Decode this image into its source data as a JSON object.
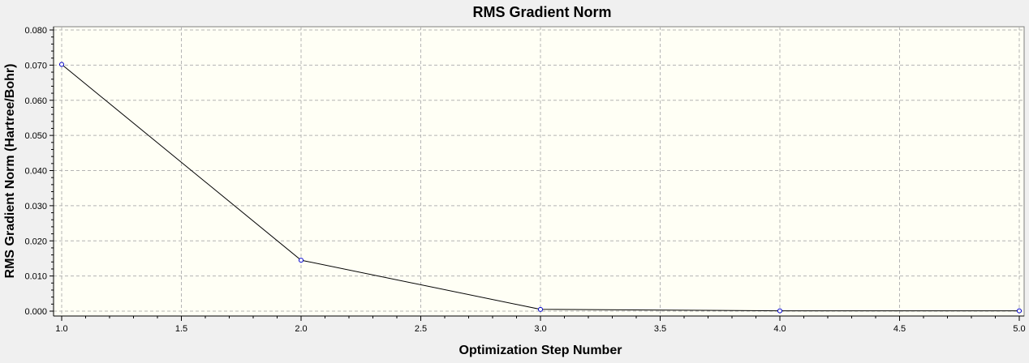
{
  "chart_data": {
    "type": "line",
    "title": "RMS Gradient Norm",
    "xlabel": "Optimization Step Number",
    "ylabel": "RMS Gradient Norm (Hartree/Bohr)",
    "xlim": [
      1.0,
      5.0
    ],
    "ylim": [
      0.0,
      0.08
    ],
    "x_ticks": [
      "1.0",
      "1.5",
      "2.0",
      "2.5",
      "3.0",
      "3.5",
      "4.0",
      "4.5",
      "5.0"
    ],
    "y_ticks": [
      "0.000",
      "0.010",
      "0.020",
      "0.030",
      "0.040",
      "0.050",
      "0.060",
      "0.070",
      "0.080"
    ],
    "grid": true,
    "series": [
      {
        "x": [
          1,
          2,
          3,
          4,
          5
        ],
        "values": [
          0.0702,
          0.0145,
          0.0005,
          0.0001,
          0.0001
        ]
      }
    ],
    "colors": {
      "plot_background": "#fffff5",
      "line": "#000000",
      "marker": "#0000cc"
    }
  }
}
